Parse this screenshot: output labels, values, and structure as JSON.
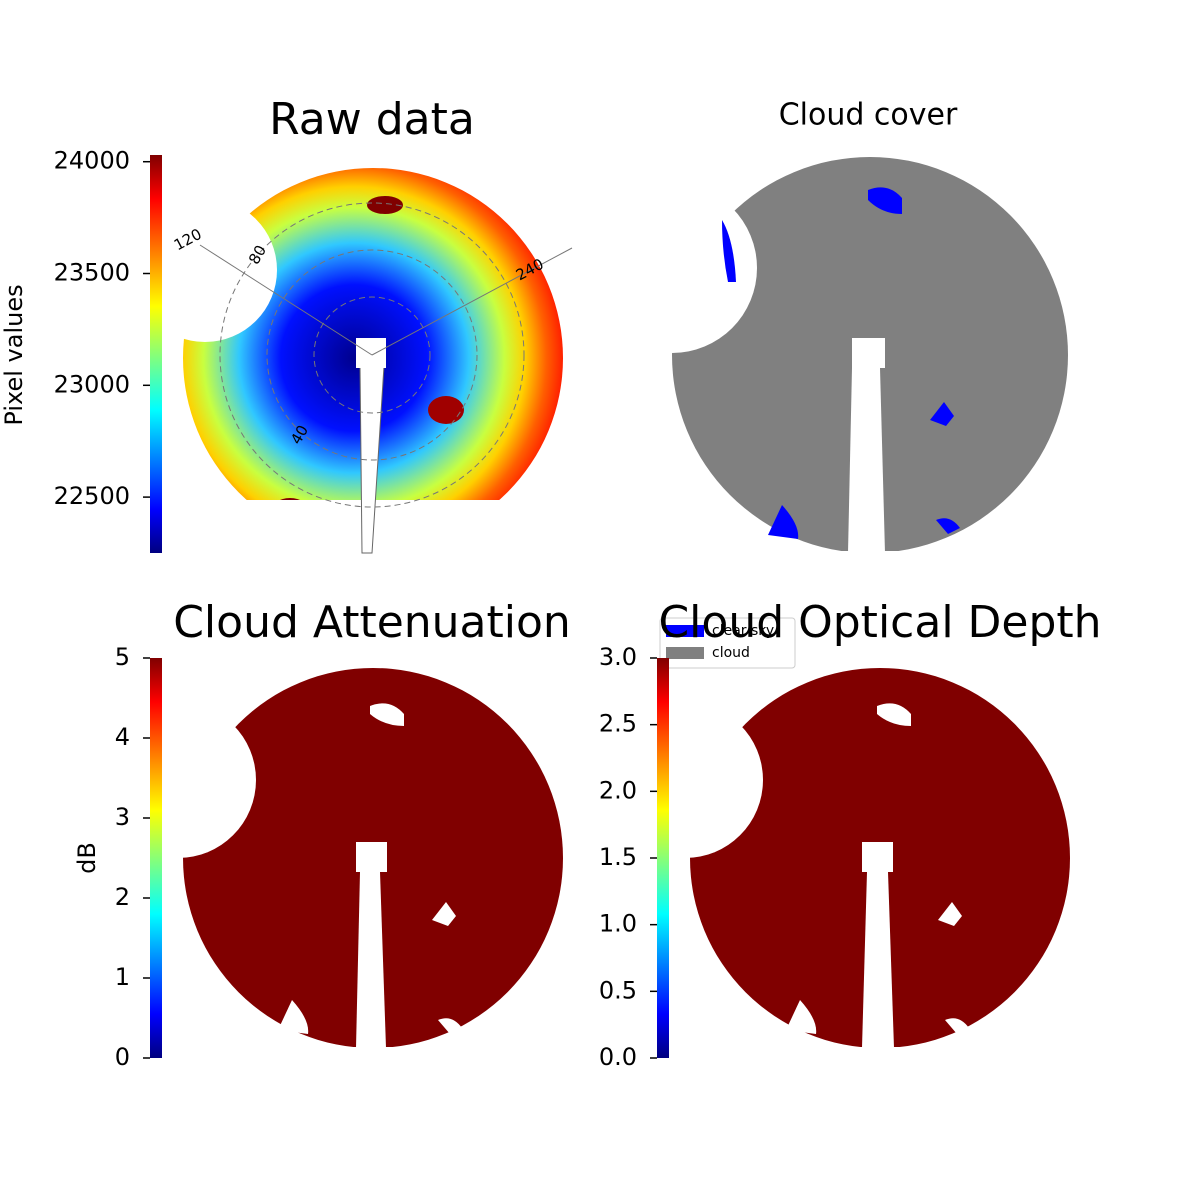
{
  "chart_data": [
    {
      "type": "image",
      "title": "Raw data",
      "colormap": "jet",
      "colorbar_label": "Pixel values",
      "clim": [
        22250,
        24030
      ],
      "cticks": [
        22500,
        23000,
        23500,
        24000
      ],
      "annotations": [
        "120",
        "80",
        "240",
        "40"
      ]
    },
    {
      "type": "image",
      "title": "Cloud cover",
      "series": [
        {
          "name": "clear sky",
          "color": "#0000ff"
        },
        {
          "name": "cloud",
          "color": "#808080"
        }
      ]
    },
    {
      "type": "image",
      "title": "Cloud Attenuation",
      "colormap": "jet",
      "colorbar_label": "dB",
      "clim": [
        0,
        5
      ],
      "cticks": [
        0,
        1,
        2,
        3,
        4,
        5
      ]
    },
    {
      "type": "image",
      "title": "Cloud Optical Depth",
      "colormap": "jet",
      "clim": [
        0,
        3
      ],
      "cticks": [
        {
          "value": 0,
          "label": "0.0"
        },
        {
          "value": 0.5,
          "label": "0.5"
        },
        {
          "value": 1,
          "label": "1.0"
        },
        {
          "value": 1.5,
          "label": "1.5"
        },
        {
          "value": 2,
          "label": "2.0"
        },
        {
          "value": 2.5,
          "label": "2.5"
        },
        {
          "value": 3,
          "label": "3.0"
        }
      ]
    }
  ]
}
